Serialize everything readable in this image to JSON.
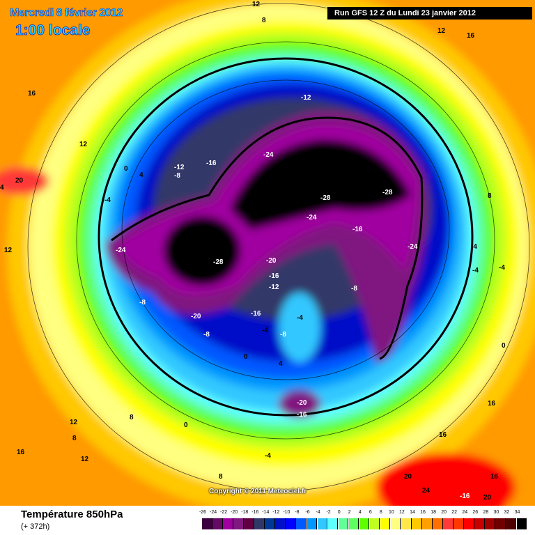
{
  "header": {
    "date": "Mercredi 8 février 2012",
    "time": "1:00 locale",
    "run": "Run GFS 12 Z du Lundi 23 janvier 2012"
  },
  "copyright": "Copyright © 2011 Meteociel.fr",
  "footer": {
    "title": "Température 850hPa",
    "subtitle": "(+ 372h)"
  },
  "legend": {
    "labels": [
      "-26",
      "-24",
      "-22",
      "-20",
      "-18",
      "-16",
      "-14",
      "-12",
      "-10",
      "-8",
      "-6",
      "-4",
      "-2",
      "0",
      "2",
      "4",
      "6",
      "8",
      "10",
      "12",
      "14",
      "16",
      "18",
      "20",
      "22",
      "24",
      "26",
      "28",
      "30",
      "32",
      "34"
    ],
    "colors": [
      "#3c0040",
      "#640a64",
      "#a000a0",
      "#801880",
      "#600040",
      "#303868",
      "#003898",
      "#0010c8",
      "#0000ff",
      "#0058ff",
      "#0098ff",
      "#30c8ff",
      "#60ffff",
      "#60ff98",
      "#60ff60",
      "#60ff00",
      "#c0ff20",
      "#ffff00",
      "#ffff80",
      "#ffe848",
      "#ffc800",
      "#ffa000",
      "#ff7000",
      "#ff3838",
      "#ff3800",
      "#ff0000",
      "#c80000",
      "#a00000",
      "#700000",
      "#500000",
      "#000000"
    ]
  },
  "contour_labels": [
    "12",
    "8",
    "12",
    "16",
    "16",
    "12",
    "-12",
    "-24",
    "-28",
    "-28",
    "-24",
    "-16",
    "-24",
    "-28",
    "-20",
    "-16",
    "-12",
    "-8",
    "-12",
    "-8",
    "-16",
    "-4",
    "0",
    "4",
    "20",
    "4",
    "12",
    "-4",
    "-24",
    "-8",
    "-20",
    "-8",
    "-16",
    "-4",
    "-4",
    "-8",
    "0",
    "4",
    "-20",
    "-16",
    "0",
    "12",
    "8",
    "8",
    "12",
    "16",
    "-4",
    "8",
    "20",
    "16",
    "24",
    "-16",
    "20",
    "16",
    "16",
    "8",
    "-4",
    "-4",
    "0",
    "12"
  ]
}
